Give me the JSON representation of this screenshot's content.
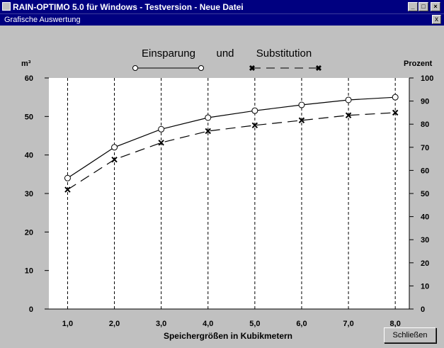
{
  "window": {
    "title": "RAIN-OPTIMO 5.0 für Windows - Testversion - Neue Datei",
    "min_icon": "minimize-icon",
    "max_icon": "maximize-icon",
    "close_icon": "close-icon"
  },
  "subwindow": {
    "title": "Grafische Auswertung",
    "close_label": "x"
  },
  "close_button": "Schließen",
  "chart_data": {
    "type": "line",
    "legend": {
      "placement": "top-center",
      "item1": "Einsparung",
      "connector": "und",
      "item2": "Substitution"
    },
    "xlabel": "Speichergrößen in Kubikmetern",
    "ylabel_left": "m³",
    "ylabel_right": "Prozent",
    "x_ticks": [
      "1,0",
      "2,0",
      "3,0",
      "4,0",
      "5,0",
      "6,0",
      "7,0",
      "8,0"
    ],
    "y_left_ticks": [
      "0",
      "10",
      "20",
      "30",
      "40",
      "50",
      "60"
    ],
    "y_right_ticks": [
      "0",
      "10",
      "20",
      "30",
      "40",
      "50",
      "60",
      "70",
      "80",
      "90",
      "100"
    ],
    "ylim_left": [
      0,
      60
    ],
    "ylim_right": [
      0,
      100
    ],
    "xlim": [
      0.6,
      8.3
    ],
    "grid": "vertical dashed",
    "x": [
      1,
      2,
      3,
      4,
      5,
      6,
      7,
      8
    ],
    "series": [
      {
        "name": "Einsparung",
        "axis": "left",
        "marker": "circle",
        "style": "solid",
        "color": "#000000",
        "values": [
          34,
          42,
          46.7,
          49.7,
          51.5,
          53,
          54.3,
          55
        ]
      },
      {
        "name": "Substitution",
        "axis": "left",
        "marker": "x",
        "style": "dashed",
        "color": "#000000",
        "values": [
          31,
          38.8,
          43.2,
          46.2,
          47.7,
          49,
          50.3,
          51
        ]
      }
    ]
  }
}
